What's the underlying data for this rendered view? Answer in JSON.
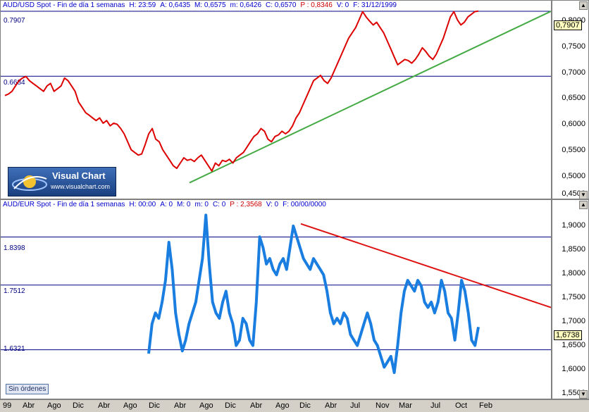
{
  "top_pane": {
    "title_parts": [
      "AUD/USD Spot - Fin de día 1 semanas",
      "H: 23:59",
      "A: 0,6435",
      "M: 0,6575",
      "m: 0,6426",
      "C: 0,6570",
      "P : 0,8346",
      "V: 0",
      "F: 31/12/1999"
    ],
    "hline_labels": [
      "0.7907",
      "0.6684"
    ],
    "price_flag": "0,7907",
    "y_ticks": [
      "0,8000",
      "0,7500",
      "0,7000",
      "0,6500",
      "0,6000",
      "0,5500",
      "0,5000",
      "0,4500"
    ]
  },
  "bottom_pane": {
    "title_parts": [
      "AUD/EUR Spot - Fin de día 1 semanas",
      "H: 00:00",
      "A: 0",
      "M: 0",
      "m: 0",
      "C: 0",
      "P : 2,3568",
      "V: 0",
      "F: 00/00/0000"
    ],
    "hline_labels": [
      "1.8398",
      "1.7512",
      "1.6321"
    ],
    "price_flag": "1,6738",
    "y_ticks": [
      "1,9000",
      "1,8500",
      "1,8000",
      "1,7500",
      "1,7000",
      "1,6500",
      "1,6000",
      "1,5500"
    ]
  },
  "logo": {
    "name": "Visual Chart",
    "url": "www.visualchart.com"
  },
  "status": "Sin órdenes",
  "x_ticks": [
    "99",
    "Abr",
    "Ago",
    "Dic",
    "Abr",
    "Ago",
    "Dic",
    "Abr",
    "Ago",
    "Dic",
    "Abr",
    "Ago",
    "Dic",
    "Abr",
    "Jul",
    "Nov",
    "Mar",
    "Jul",
    "Oct",
    "Feb"
  ],
  "colors": {
    "price_top": "#dd0000",
    "price_bottom": "#1a7de0",
    "trend_top": "#44aa44",
    "trend_bottom": "#dd1111",
    "hline": "#000080"
  },
  "chart_data": [
    {
      "type": "line",
      "title": "AUD/USD Spot - Fin de día 1 semanas",
      "ylim": [
        0.45,
        0.8
      ],
      "horizontal_lines": [
        0.7907,
        0.6684
      ],
      "trendline": {
        "from": [
          80,
          0.468
        ],
        "to": [
          311,
          0.7907
        ]
      },
      "series": [
        {
          "values": [
            0.632,
            0.635,
            0.64,
            0.65,
            0.66,
            0.665,
            0.668,
            0.66,
            0.655,
            0.65,
            0.645,
            0.64,
            0.65,
            0.655,
            0.64,
            0.645,
            0.65,
            0.665,
            0.66,
            0.65,
            0.64,
            0.62,
            0.61,
            0.6,
            0.595,
            0.59,
            0.585,
            0.59,
            0.58,
            0.585,
            0.575,
            0.58,
            0.578,
            0.57,
            0.56,
            0.545,
            0.53,
            0.525,
            0.52,
            0.522,
            0.54,
            0.56,
            0.57,
            0.55,
            0.545,
            0.53,
            0.52,
            0.51,
            0.5,
            0.495,
            0.505,
            0.515,
            0.51,
            0.512,
            0.508,
            0.515,
            0.52,
            0.51,
            0.5,
            0.49,
            0.505,
            0.5,
            0.51,
            0.508,
            0.512,
            0.505,
            0.515,
            0.52,
            0.525,
            0.535,
            0.545,
            0.555,
            0.56,
            0.57,
            0.565,
            0.55,
            0.545,
            0.555,
            0.558,
            0.565,
            0.56,
            0.565,
            0.575,
            0.59,
            0.6,
            0.615,
            0.63,
            0.645,
            0.66,
            0.665,
            0.67,
            0.66,
            0.655,
            0.665,
            0.68,
            0.695,
            0.71,
            0.725,
            0.74,
            0.75,
            0.76,
            0.775,
            0.79,
            0.78,
            0.772,
            0.765,
            0.77,
            0.76,
            0.75,
            0.735,
            0.72,
            0.705,
            0.69,
            0.695,
            0.7,
            0.698,
            0.693,
            0.7,
            0.71,
            0.722,
            0.715,
            0.706,
            0.7,
            0.71,
            0.725,
            0.74,
            0.76,
            0.78,
            0.79,
            0.775,
            0.765,
            0.77,
            0.78,
            0.785,
            0.79,
            0.791
          ]
        }
      ]
    },
    {
      "type": "line",
      "title": "AUD/EUR Spot - Fin de día 1 semanas",
      "ylim": [
        1.55,
        1.9
      ],
      "horizontal_lines": [
        1.8398,
        1.7512,
        1.6321
      ],
      "trendline": {
        "from": [
          133,
          1.864
        ],
        "to": [
          311,
          1.71
        ]
      },
      "series": [
        {
          "values": [
            1.625,
            1.68,
            1.7,
            1.69,
            1.72,
            1.76,
            1.83,
            1.78,
            1.7,
            1.66,
            1.63,
            1.65,
            1.68,
            1.7,
            1.72,
            1.76,
            1.8,
            1.88,
            1.79,
            1.72,
            1.7,
            1.69,
            1.72,
            1.74,
            1.7,
            1.68,
            1.64,
            1.65,
            1.69,
            1.68,
            1.65,
            1.64,
            1.72,
            1.84,
            1.82,
            1.79,
            1.8,
            1.78,
            1.77,
            1.79,
            1.8,
            1.78,
            1.82,
            1.86,
            1.84,
            1.82,
            1.8,
            1.79,
            1.78,
            1.8,
            1.79,
            1.78,
            1.77,
            1.74,
            1.7,
            1.68,
            1.69,
            1.68,
            1.7,
            1.69,
            1.66,
            1.65,
            1.64,
            1.66,
            1.68,
            1.7,
            1.68,
            1.65,
            1.64,
            1.62,
            1.6,
            1.61,
            1.62,
            1.59,
            1.64,
            1.7,
            1.74,
            1.76,
            1.75,
            1.74,
            1.76,
            1.75,
            1.72,
            1.71,
            1.72,
            1.7,
            1.72,
            1.76,
            1.74,
            1.7,
            1.69,
            1.65,
            1.7,
            1.76,
            1.74,
            1.7,
            1.65,
            1.64,
            1.674
          ]
        }
      ]
    }
  ]
}
